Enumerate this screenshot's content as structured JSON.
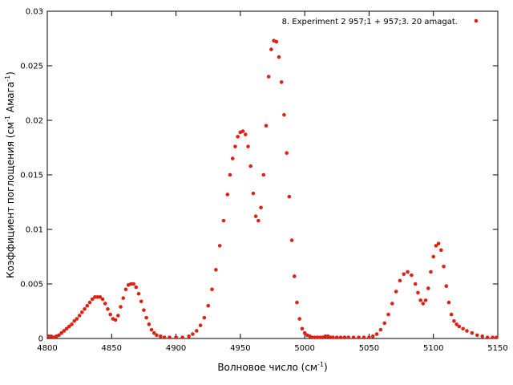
{
  "chart_data": {
    "type": "scatter",
    "xlabel": "Волновое число (см",
    "xlabel_sup": "-1",
    "xlabel_tail": ")",
    "ylabel": "Коэффициент поглощения (см",
    "ylabel_sup1": "-1",
    "ylabel_mid": " Амага",
    "ylabel_sup2": "-1",
    "ylabel_tail": ")",
    "xlim": [
      4800,
      5150
    ],
    "ylim": [
      0,
      0.03
    ],
    "x_ticks": [
      4800,
      4850,
      4900,
      4950,
      5000,
      5050,
      5100,
      5150
    ],
    "y_ticks": [
      0,
      0.005,
      0.01,
      0.015,
      0.02,
      0.025,
      0.03
    ],
    "x_tick_labels": [
      "4800",
      "4850",
      "4900",
      "4950",
      "5000",
      "5050",
      "5100",
      "5150"
    ],
    "y_tick_labels": [
      "0",
      "0.005",
      "0.01",
      "0.015",
      "0.02",
      "0.025",
      "0.03"
    ],
    "grid": false,
    "legend_position": "top-right",
    "series": [
      {
        "name": "8. Experiment 2  957;1 +   957;3. 20 amagat.",
        "color": "#dd2211",
        "points": [
          [
            4801,
            0.0002
          ],
          [
            4803,
            0.0002
          ],
          [
            4805,
            0.0001
          ],
          [
            4807,
            0.0002
          ],
          [
            4809,
            0.0003
          ],
          [
            4811,
            0.0005
          ],
          [
            4813,
            0.0007
          ],
          [
            4815,
            0.0009
          ],
          [
            4817,
            0.0011
          ],
          [
            4819,
            0.0013
          ],
          [
            4821,
            0.0016
          ],
          [
            4823,
            0.0018
          ],
          [
            4825,
            0.0021
          ],
          [
            4827,
            0.0024
          ],
          [
            4829,
            0.0027
          ],
          [
            4831,
            0.003
          ],
          [
            4833,
            0.0033
          ],
          [
            4835,
            0.0036
          ],
          [
            4837,
            0.0038
          ],
          [
            4839,
            0.0038
          ],
          [
            4841,
            0.0038
          ],
          [
            4843,
            0.0036
          ],
          [
            4845,
            0.0032
          ],
          [
            4847,
            0.0027
          ],
          [
            4849,
            0.0022
          ],
          [
            4851,
            0.0018
          ],
          [
            4853,
            0.0017
          ],
          [
            4855,
            0.0021
          ],
          [
            4857,
            0.0029
          ],
          [
            4859,
            0.0037
          ],
          [
            4861,
            0.0045
          ],
          [
            4863,
            0.0049
          ],
          [
            4865,
            0.005
          ],
          [
            4867,
            0.005
          ],
          [
            4869,
            0.0047
          ],
          [
            4871,
            0.0041
          ],
          [
            4873,
            0.0034
          ],
          [
            4875,
            0.0026
          ],
          [
            4877,
            0.0019
          ],
          [
            4879,
            0.0013
          ],
          [
            4881,
            0.0008
          ],
          [
            4883,
            0.0005
          ],
          [
            4885,
            0.0003
          ],
          [
            4888,
            0.0002
          ],
          [
            4891,
            0.0001
          ],
          [
            4895,
            0.0001
          ],
          [
            4900,
            0.0001
          ],
          [
            4905,
            0.0001
          ],
          [
            4910,
            0.0002
          ],
          [
            4913,
            0.0004
          ],
          [
            4916,
            0.0007
          ],
          [
            4919,
            0.0012
          ],
          [
            4922,
            0.0019
          ],
          [
            4925,
            0.003
          ],
          [
            4928,
            0.0045
          ],
          [
            4931,
            0.0063
          ],
          [
            4934,
            0.0085
          ],
          [
            4937,
            0.0108
          ],
          [
            4940,
            0.0132
          ],
          [
            4942,
            0.015
          ],
          [
            4944,
            0.0165
          ],
          [
            4946,
            0.0176
          ],
          [
            4948,
            0.0185
          ],
          [
            4950,
            0.0189
          ],
          [
            4952,
            0.019
          ],
          [
            4954,
            0.0187
          ],
          [
            4956,
            0.0176
          ],
          [
            4958,
            0.0158
          ],
          [
            4960,
            0.0133
          ],
          [
            4962,
            0.0112
          ],
          [
            4964,
            0.0108
          ],
          [
            4966,
            0.012
          ],
          [
            4968,
            0.015
          ],
          [
            4970,
            0.0195
          ],
          [
            4972,
            0.024
          ],
          [
            4974,
            0.0265
          ],
          [
            4976,
            0.0273
          ],
          [
            4978,
            0.0272
          ],
          [
            4980,
            0.0258
          ],
          [
            4982,
            0.0235
          ],
          [
            4984,
            0.0205
          ],
          [
            4986,
            0.017
          ],
          [
            4988,
            0.013
          ],
          [
            4990,
            0.009
          ],
          [
            4992,
            0.0057
          ],
          [
            4994,
            0.0033
          ],
          [
            4996,
            0.0018
          ],
          [
            4998,
            0.0009
          ],
          [
            5000,
            0.0005
          ],
          [
            5002,
            0.0003
          ],
          [
            5004,
            0.0002
          ],
          [
            5006,
            0.0001
          ],
          [
            5008,
            0.0001
          ],
          [
            5010,
            0.0001
          ],
          [
            5012,
            0.0001
          ],
          [
            5014,
            0.0001
          ],
          [
            5016,
            0.0002
          ],
          [
            5018,
            0.0002
          ],
          [
            5020,
            0.0001
          ],
          [
            5022,
            0.0001
          ],
          [
            5025,
            0.0001
          ],
          [
            5028,
            0.0001
          ],
          [
            5031,
            0.0001
          ],
          [
            5034,
            0.0001
          ],
          [
            5038,
            0.0001
          ],
          [
            5042,
            0.0001
          ],
          [
            5046,
            0.0001
          ],
          [
            5050,
            0.0001
          ],
          [
            5053,
            0.0002
          ],
          [
            5056,
            0.0004
          ],
          [
            5059,
            0.0008
          ],
          [
            5062,
            0.0014
          ],
          [
            5065,
            0.0022
          ],
          [
            5068,
            0.0032
          ],
          [
            5071,
            0.0043
          ],
          [
            5074,
            0.0053
          ],
          [
            5077,
            0.0059
          ],
          [
            5080,
            0.0061
          ],
          [
            5083,
            0.0058
          ],
          [
            5086,
            0.005
          ],
          [
            5088,
            0.0042
          ],
          [
            5090,
            0.0035
          ],
          [
            5092,
            0.0032
          ],
          [
            5094,
            0.0035
          ],
          [
            5096,
            0.0046
          ],
          [
            5098,
            0.0061
          ],
          [
            5100,
            0.0075
          ],
          [
            5102,
            0.0085
          ],
          [
            5104,
            0.0087
          ],
          [
            5106,
            0.0081
          ],
          [
            5108,
            0.0066
          ],
          [
            5110,
            0.0048
          ],
          [
            5112,
            0.0033
          ],
          [
            5114,
            0.0022
          ],
          [
            5116,
            0.0016
          ],
          [
            5118,
            0.0013
          ],
          [
            5120,
            0.0011
          ],
          [
            5123,
            0.0009
          ],
          [
            5126,
            0.0007
          ],
          [
            5130,
            0.0005
          ],
          [
            5134,
            0.0003
          ],
          [
            5138,
            0.0002
          ],
          [
            5142,
            0.0001
          ],
          [
            5146,
            0.0001
          ],
          [
            5149,
            0.0001
          ]
        ]
      }
    ]
  }
}
